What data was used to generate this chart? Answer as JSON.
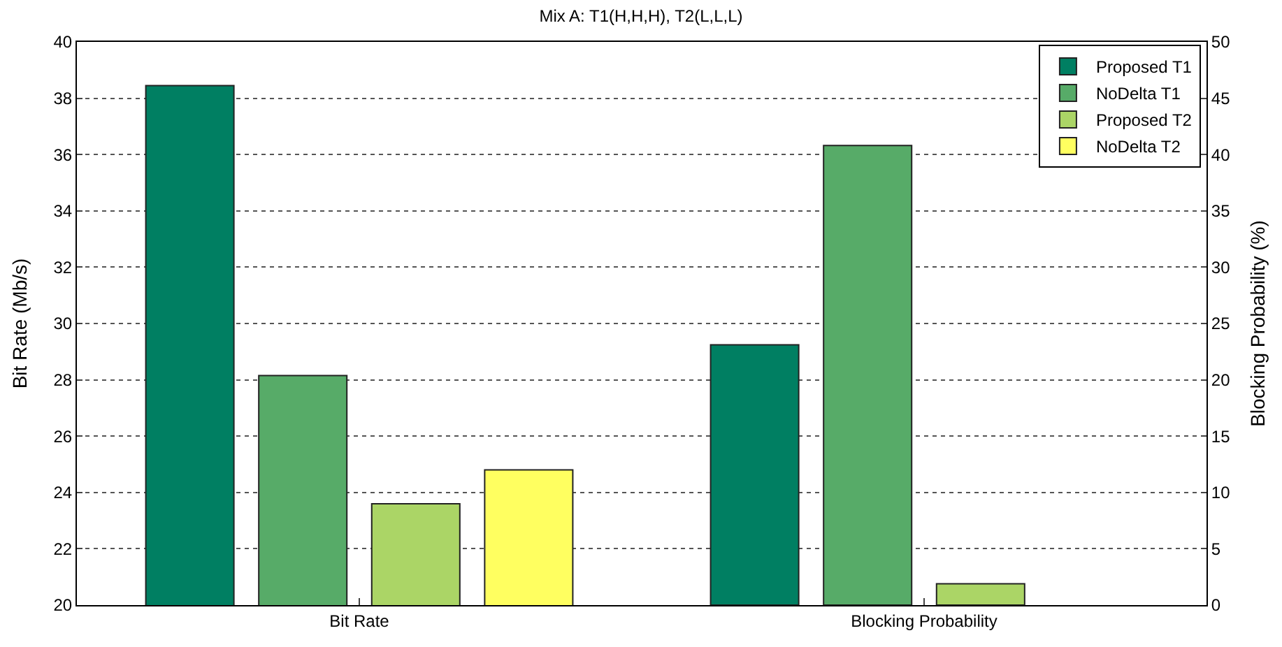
{
  "chart_data": {
    "type": "bar",
    "title": "Mix A: T1(H,H,H), T2(L,L,L)",
    "ylabel": "Bit Rate (Mb/s)",
    "y2label": "Blocking Probability (%)",
    "categories": [
      "Bit Rate",
      "Blocking Probability"
    ],
    "series": [
      {
        "name": "Proposed T1",
        "color": "#007f62",
        "values": [
          38.45,
          null
        ]
      },
      {
        "name": "NoDelta T1",
        "color": "#57ab68",
        "values": [
          28.15,
          null
        ]
      },
      {
        "name": "Proposed T2",
        "color": "#abd566",
        "values": [
          23.6,
          null
        ]
      },
      {
        "name": "NoDelta T2",
        "color": "#ffff60",
        "values": [
          24.8,
          null
        ]
      },
      {
        "color": "#007f62",
        "values": [
          null,
          23.1
        ],
        "axis": "y2"
      },
      {
        "color": "#57ab68",
        "values": [
          null,
          40.8
        ],
        "axis": "y2"
      },
      {
        "color": "#abd566",
        "values": [
          null,
          1.9
        ],
        "axis": "y2"
      },
      {
        "color": "#ffff60",
        "values": [
          null,
          null
        ],
        "axis": "y2"
      }
    ],
    "ylim": [
      20,
      40
    ],
    "yticks": [
      20,
      22,
      24,
      26,
      28,
      30,
      32,
      34,
      36,
      38,
      40
    ],
    "y2lim": [
      0,
      50
    ],
    "y2ticks": [
      0,
      5,
      10,
      15,
      20,
      25,
      30,
      35,
      40,
      45,
      50
    ],
    "grid": "y",
    "legend": "top right"
  }
}
